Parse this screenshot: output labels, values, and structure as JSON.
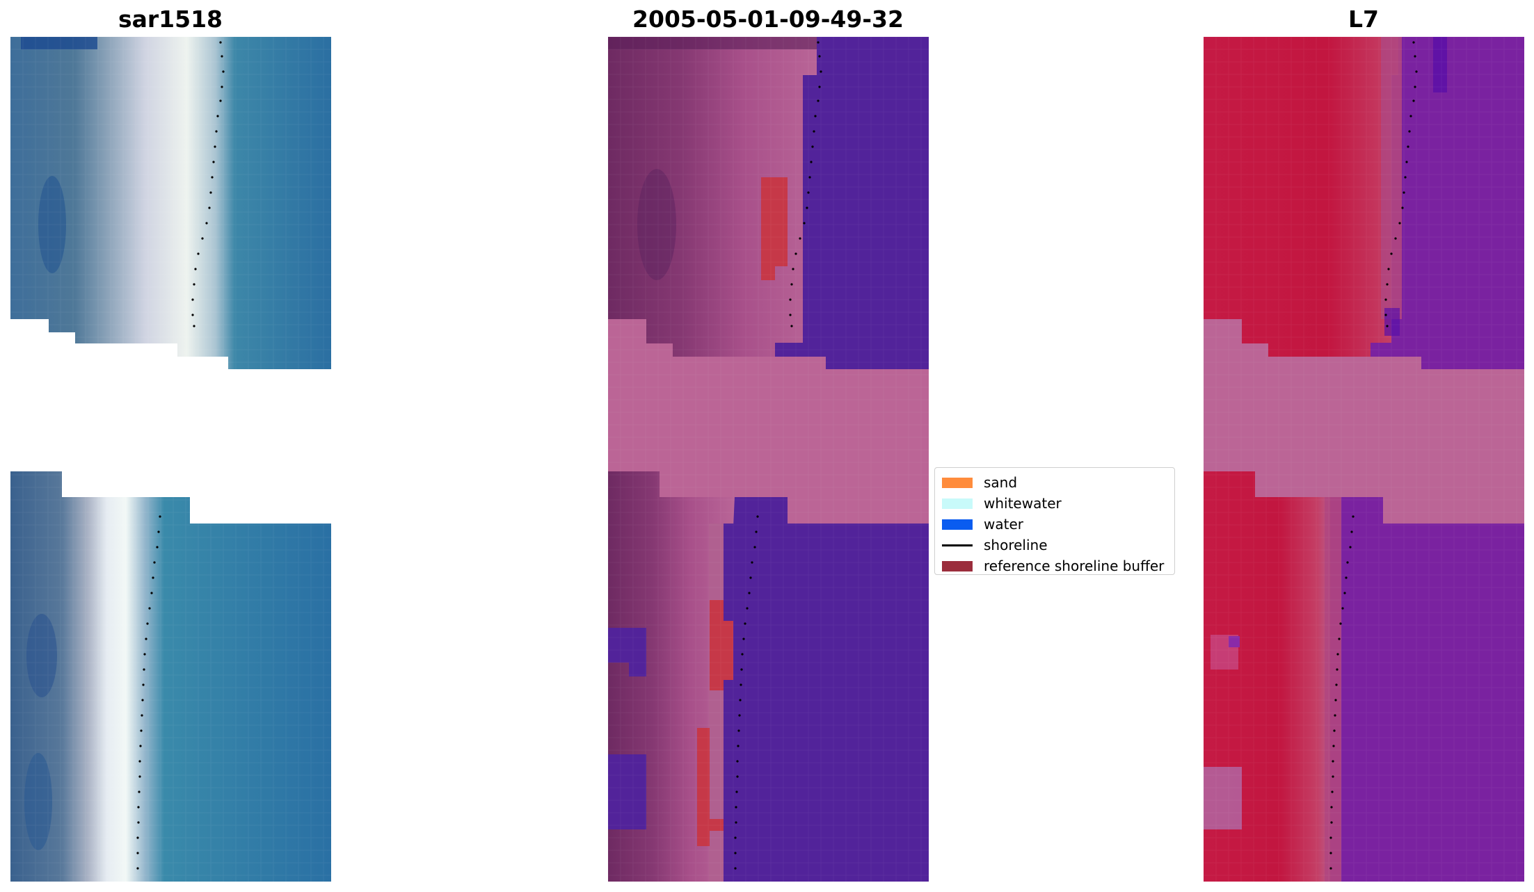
{
  "figure": {
    "titles": {
      "left": "sar1518",
      "center": "2005-05-01-09-49-32",
      "right": "L7"
    },
    "legend": [
      {
        "label": "sand",
        "color": "#ff8c3c",
        "kind": "patch"
      },
      {
        "label": "whitewater",
        "color": "#c8fafa",
        "kind": "patch"
      },
      {
        "label": "water",
        "color": "#0a5cf0",
        "kind": "patch"
      },
      {
        "label": "shoreline",
        "color": "#000000",
        "kind": "line"
      },
      {
        "label": "reference shoreline buffer",
        "color": "#9b2d3c",
        "kind": "patch"
      }
    ],
    "colors": {
      "rgb_sand": "#c8ccd8",
      "rgb_water": "#2f7aa8",
      "class_land": "#a8508a",
      "class_water": "#52239a",
      "class_buffer": "#c63848",
      "nodata_pink": "#bb6596",
      "index_land": "#c0183f",
      "index_water": "#7a22a0"
    }
  }
}
